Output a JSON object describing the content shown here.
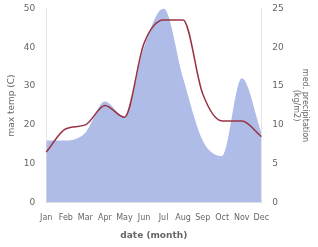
{
  "chart_data": {
    "type": "line",
    "xlabel": "date (month)",
    "ylabel": "max temp (C)",
    "y2label": "med. precipitation\n(kg/m2)",
    "categories": [
      "Jan",
      "Feb",
      "Mar",
      "Apr",
      "May",
      "Jun",
      "Jul",
      "Aug",
      "Sep",
      "Oct",
      "Nov",
      "Dec"
    ],
    "series": [
      {
        "type": "area",
        "color": "#b0bce8",
        "axis": "y2",
        "values": [
          8,
          8,
          9,
          13,
          11,
          20,
          25,
          16,
          8,
          6,
          16,
          9
        ]
      },
      {
        "type": "line",
        "color": "#993344",
        "values": [
          13,
          19,
          20,
          25,
          22,
          41,
          47,
          47,
          28,
          21,
          21,
          17
        ]
      }
    ],
    "ylim": [
      0,
      50
    ],
    "yticks": [
      0,
      10,
      20,
      30,
      40,
      50
    ],
    "y2lim": [
      0,
      25
    ],
    "y2ticks": [
      0,
      5,
      10,
      15,
      20,
      25
    ],
    "grid": false
  }
}
